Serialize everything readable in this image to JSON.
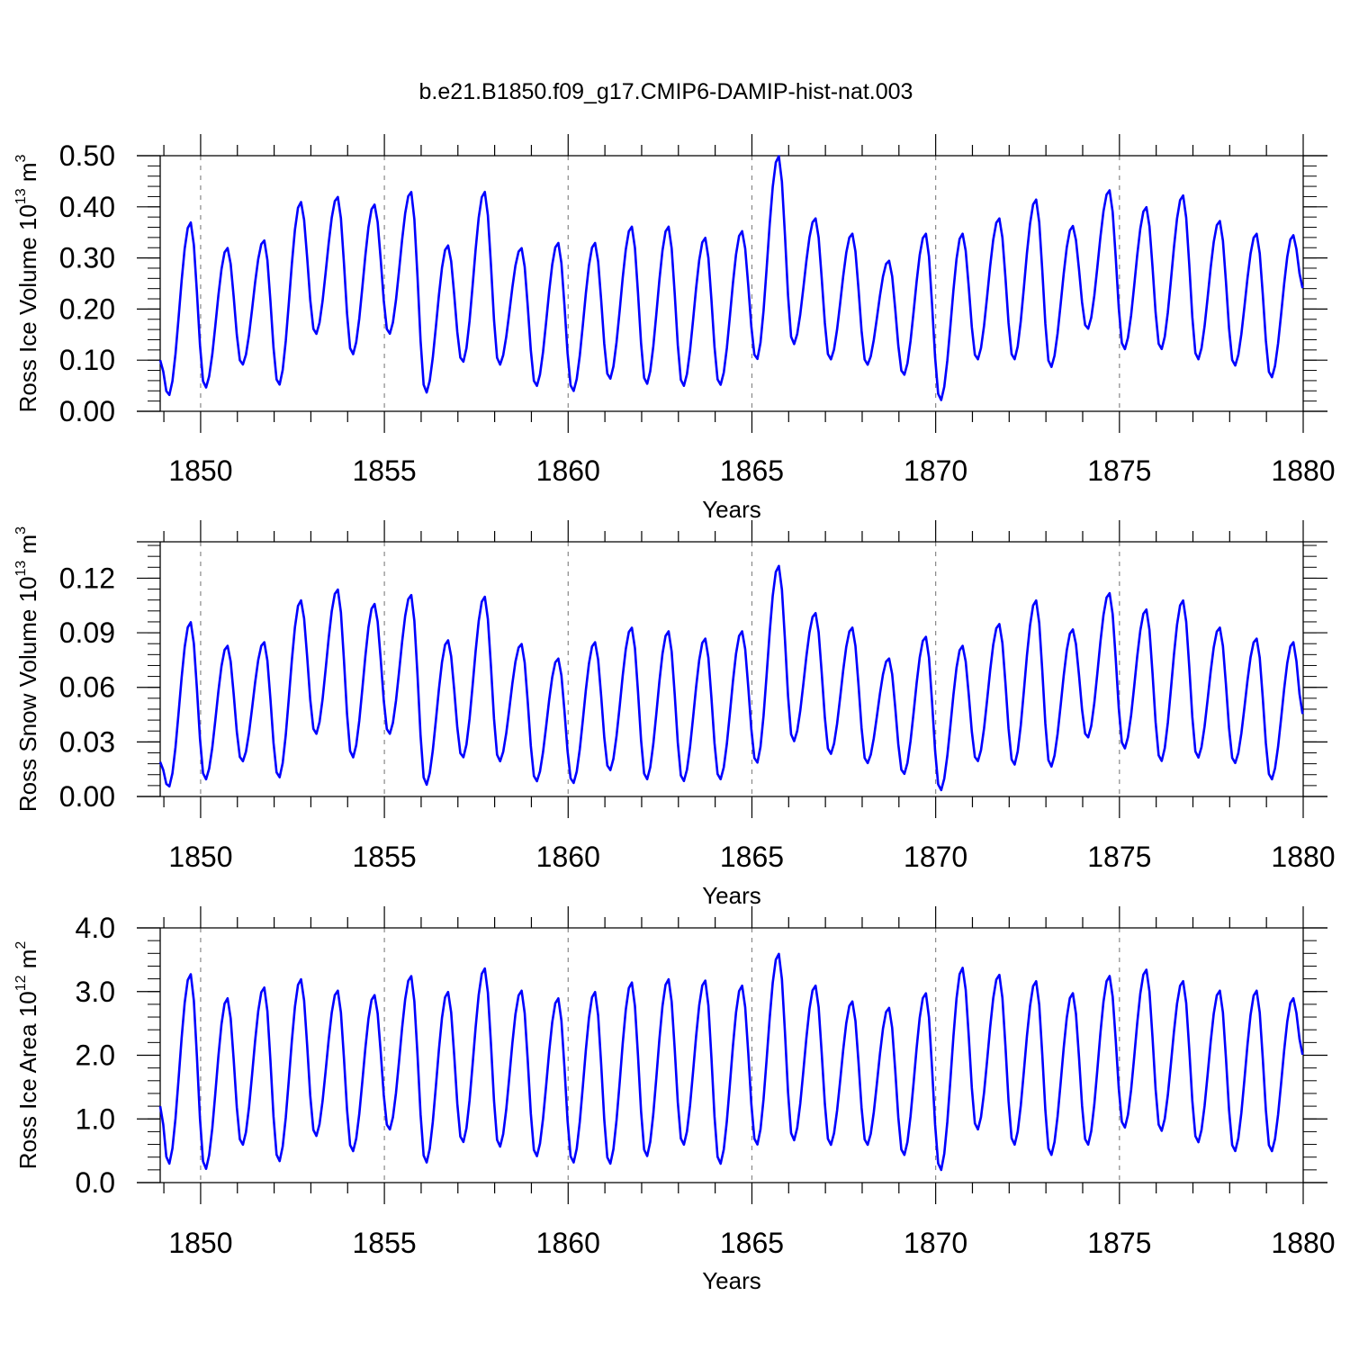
{
  "title": "b.e21.B1850.f09_g17.CMIP6-DAMIP-hist-nat.003",
  "colors": {
    "line": "#0000ff",
    "axis": "#000000",
    "refline": "#888888"
  },
  "chart_data": [
    {
      "type": "line",
      "xlabel": "Years",
      "ylabel": {
        "text": "Ross Ice Volume 10",
        "exp": "13",
        "unit": " m",
        "unit_exp": "3"
      },
      "xlim": [
        1848.9,
        1880.0
      ],
      "ylim": [
        0,
        0.5
      ],
      "xticks": [
        1850,
        1855,
        1860,
        1865,
        1870,
        1875,
        1880
      ],
      "yticks": [
        0,
        0.1,
        0.2,
        0.3,
        0.4,
        0.5
      ],
      "ytick_labels": [
        "0.00",
        "0.10",
        "0.20",
        "0.30",
        "0.40",
        "0.50"
      ],
      "reference_years": [
        1850,
        1855,
        1860,
        1865,
        1870,
        1875
      ],
      "grid": false,
      "minima": [
        0.03,
        0.045,
        0.09,
        0.05,
        0.15,
        0.11,
        0.15,
        0.035,
        0.095,
        0.09,
        0.048,
        0.038,
        0.062,
        0.052,
        0.048,
        0.05,
        0.1,
        0.13,
        0.1,
        0.09,
        0.07,
        0.02,
        0.1,
        0.1,
        0.085,
        0.16,
        0.12,
        0.12,
        0.1,
        0.088,
        0.065
      ],
      "maxima": [
        0.37,
        0.32,
        0.335,
        0.41,
        0.42,
        0.405,
        0.43,
        0.325,
        0.43,
        0.32,
        0.33,
        0.33,
        0.362,
        0.362,
        0.34,
        0.353,
        0.5,
        0.378,
        0.348,
        0.295,
        0.348,
        0.348,
        0.378,
        0.415,
        0.363,
        0.433,
        0.4,
        0.423,
        0.373,
        0.348,
        0.345
      ],
      "start_value": 0.1,
      "end_value": 0.24,
      "series": [
        {
          "values": []
        }
      ]
    },
    {
      "type": "line",
      "xlabel": "Years",
      "ylabel": {
        "text": "Ross Snow Volume 10",
        "exp": "13",
        "unit": " m",
        "unit_exp": "3"
      },
      "xlim": [
        1848.9,
        1880.0
      ],
      "ylim": [
        0,
        0.14
      ],
      "xticks": [
        1850,
        1855,
        1860,
        1865,
        1870,
        1875,
        1880
      ],
      "yticks": [
        0,
        0.03,
        0.06,
        0.09,
        0.12
      ],
      "ytick_labels": [
        "0.00",
        "0.03",
        "0.06",
        "0.09",
        "0.12"
      ],
      "reference_years": [
        1850,
        1855,
        1860,
        1865,
        1870,
        1875
      ],
      "grid": false,
      "minima": [
        0.005,
        0.009,
        0.019,
        0.01,
        0.034,
        0.021,
        0.034,
        0.006,
        0.021,
        0.019,
        0.008,
        0.007,
        0.014,
        0.009,
        0.008,
        0.009,
        0.018,
        0.03,
        0.023,
        0.018,
        0.012,
        0.003,
        0.019,
        0.017,
        0.016,
        0.032,
        0.026,
        0.019,
        0.021,
        0.018,
        0.009
      ],
      "maxima": [
        0.096,
        0.083,
        0.085,
        0.108,
        0.114,
        0.106,
        0.111,
        0.086,
        0.11,
        0.084,
        0.076,
        0.085,
        0.093,
        0.091,
        0.087,
        0.091,
        0.127,
        0.101,
        0.093,
        0.076,
        0.088,
        0.083,
        0.095,
        0.108,
        0.092,
        0.112,
        0.103,
        0.108,
        0.093,
        0.087,
        0.085
      ],
      "start_value": 0.019,
      "end_value": 0.045,
      "series": [
        {
          "values": []
        }
      ]
    },
    {
      "type": "line",
      "xlabel": "Years",
      "ylabel": {
        "text": "Ross Ice Area 10",
        "exp": "12",
        "unit": " m",
        "unit_exp": "2"
      },
      "xlim": [
        1848.9,
        1880.0
      ],
      "ylim": [
        0,
        4.0
      ],
      "xticks": [
        1850,
        1855,
        1860,
        1865,
        1870,
        1875,
        1880
      ],
      "yticks": [
        0,
        1,
        2,
        3,
        4
      ],
      "ytick_labels": [
        "0.0",
        "1.0",
        "2.0",
        "3.0",
        "4.0"
      ],
      "reference_years": [
        1850,
        1855,
        1860,
        1865,
        1870,
        1875
      ],
      "grid": false,
      "minima": [
        0.28,
        0.2,
        0.58,
        0.32,
        0.72,
        0.48,
        0.82,
        0.3,
        0.62,
        0.55,
        0.4,
        0.3,
        0.28,
        0.4,
        0.58,
        0.28,
        0.58,
        0.65,
        0.58,
        0.58,
        0.42,
        0.18,
        0.82,
        0.58,
        0.42,
        0.58,
        0.85,
        0.8,
        0.62,
        0.48,
        0.48
      ],
      "maxima": [
        3.28,
        2.9,
        3.07,
        3.2,
        3.02,
        2.95,
        3.25,
        3.0,
        3.37,
        3.02,
        2.9,
        3.0,
        3.15,
        3.2,
        3.18,
        3.1,
        3.6,
        3.1,
        2.85,
        2.75,
        2.98,
        3.38,
        3.27,
        3.17,
        2.98,
        3.25,
        3.35,
        3.17,
        3.02,
        3.02,
        2.9
      ],
      "start_value": 1.2,
      "end_value": 2.0,
      "series": [
        {
          "values": []
        }
      ]
    }
  ]
}
